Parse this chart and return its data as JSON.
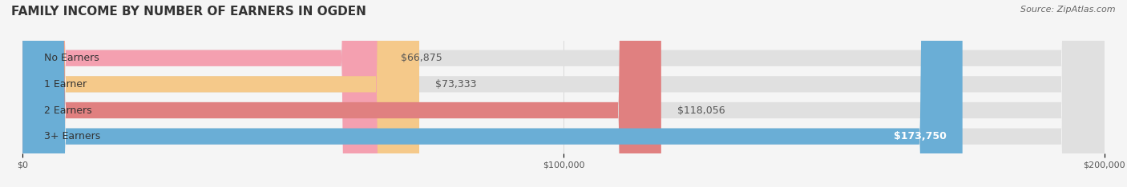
{
  "title": "FAMILY INCOME BY NUMBER OF EARNERS IN OGDEN",
  "source": "Source: ZipAtlas.com",
  "categories": [
    "No Earners",
    "1 Earner",
    "2 Earners",
    "3+ Earners"
  ],
  "values": [
    66875,
    73333,
    118056,
    173750
  ],
  "labels": [
    "$66,875",
    "$73,333",
    "$118,056",
    "$173,750"
  ],
  "bar_colors": [
    "#f4a0b0",
    "#f5c98a",
    "#e08080",
    "#6aaed6"
  ],
  "bar_bg_color": "#e0e0e0",
  "background_color": "#f5f5f5",
  "xlim": [
    0,
    200000
  ],
  "xtick_values": [
    0,
    100000,
    200000
  ],
  "xtick_labels": [
    "$0",
    "$100,000",
    "$200,000"
  ],
  "title_fontsize": 11,
  "source_fontsize": 8,
  "label_fontsize": 9,
  "category_fontsize": 9
}
